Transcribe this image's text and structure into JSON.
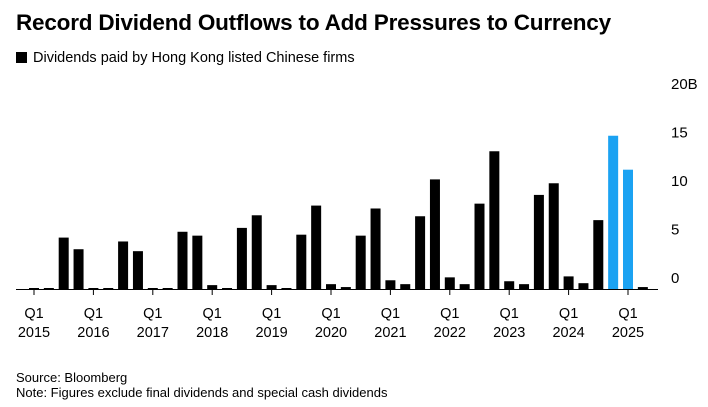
{
  "title": "Record Dividend Outflows to Add Pressures to Currency",
  "legend_label": "Dividends paid by Hong Kong listed Chinese firms",
  "source": "Source: Bloomberg",
  "note": "Note: Figures exclude final dividends and special cash dividends",
  "colors": {
    "bar": "#000000",
    "highlight": "#1ba2f2",
    "axis": "#000000"
  },
  "chart_data": {
    "type": "bar",
    "title": "Record Dividend Outflows to Add Pressures to Currency",
    "xlabel": "",
    "ylabel": "",
    "ylim": [
      0,
      20
    ],
    "unit_suffix": "B",
    "y_ticks": [
      0,
      5,
      10,
      15,
      20
    ],
    "y_tick_labels": [
      "0",
      "5",
      "10",
      "15",
      "20B"
    ],
    "series": [
      {
        "name": "Dividends paid by Hong Kong listed Chinese firms",
        "values": [
          0.1,
          0.1,
          5.3,
          4.1,
          0.1,
          0.1,
          4.9,
          3.9,
          0.1,
          0.1,
          5.9,
          5.5,
          0.4,
          0.1,
          6.3,
          7.6,
          0.4,
          0.1,
          5.6,
          8.6,
          0.5,
          0.2,
          5.5,
          8.3,
          0.9,
          0.5,
          7.5,
          11.3,
          1.2,
          0.5,
          8.8,
          14.2,
          0.8,
          0.5,
          9.7,
          10.9,
          1.3,
          0.6,
          7.1,
          15.8,
          12.3,
          0.2
        ]
      }
    ],
    "categories": [
      "2015 Q1",
      "2015 Q2",
      "2015 Q3",
      "2015 Q4",
      "2016 Q1",
      "2016 Q2",
      "2016 Q3",
      "2016 Q4",
      "2017 Q1",
      "2017 Q2",
      "2017 Q3",
      "2017 Q4",
      "2018 Q1",
      "2018 Q2",
      "2018 Q3",
      "2018 Q4",
      "2019 Q1",
      "2019 Q2",
      "2019 Q3",
      "2019 Q4",
      "2020 Q1",
      "2020 Q2",
      "2020 Q3",
      "2020 Q4",
      "2021 Q1",
      "2021 Q2",
      "2021 Q3",
      "2021 Q4",
      "2022 Q1",
      "2022 Q2",
      "2022 Q3",
      "2022 Q4",
      "2023 Q1",
      "2023 Q2",
      "2023 Q3",
      "2023 Q4",
      "2024 Q1",
      "2024 Q2",
      "2024 Q3",
      "2024 Q4",
      "2025 Q1",
      "2025 Q2"
    ],
    "highlighted_indices": [
      39,
      40
    ],
    "x_tick_labels": [
      {
        "index": 0,
        "quarter": "Q1",
        "year": "2015"
      },
      {
        "index": 4,
        "quarter": "Q1",
        "year": "2016"
      },
      {
        "index": 8,
        "quarter": "Q1",
        "year": "2017"
      },
      {
        "index": 12,
        "quarter": "Q1",
        "year": "2018"
      },
      {
        "index": 16,
        "quarter": "Q1",
        "year": "2019"
      },
      {
        "index": 20,
        "quarter": "Q1",
        "year": "2020"
      },
      {
        "index": 24,
        "quarter": "Q1",
        "year": "2021"
      },
      {
        "index": 28,
        "quarter": "Q1",
        "year": "2022"
      },
      {
        "index": 32,
        "quarter": "Q1",
        "year": "2023"
      },
      {
        "index": 36,
        "quarter": "Q1",
        "year": "2024"
      },
      {
        "index": 40,
        "quarter": "Q1",
        "year": "2025"
      }
    ],
    "grid": false,
    "legend": "top-left"
  }
}
